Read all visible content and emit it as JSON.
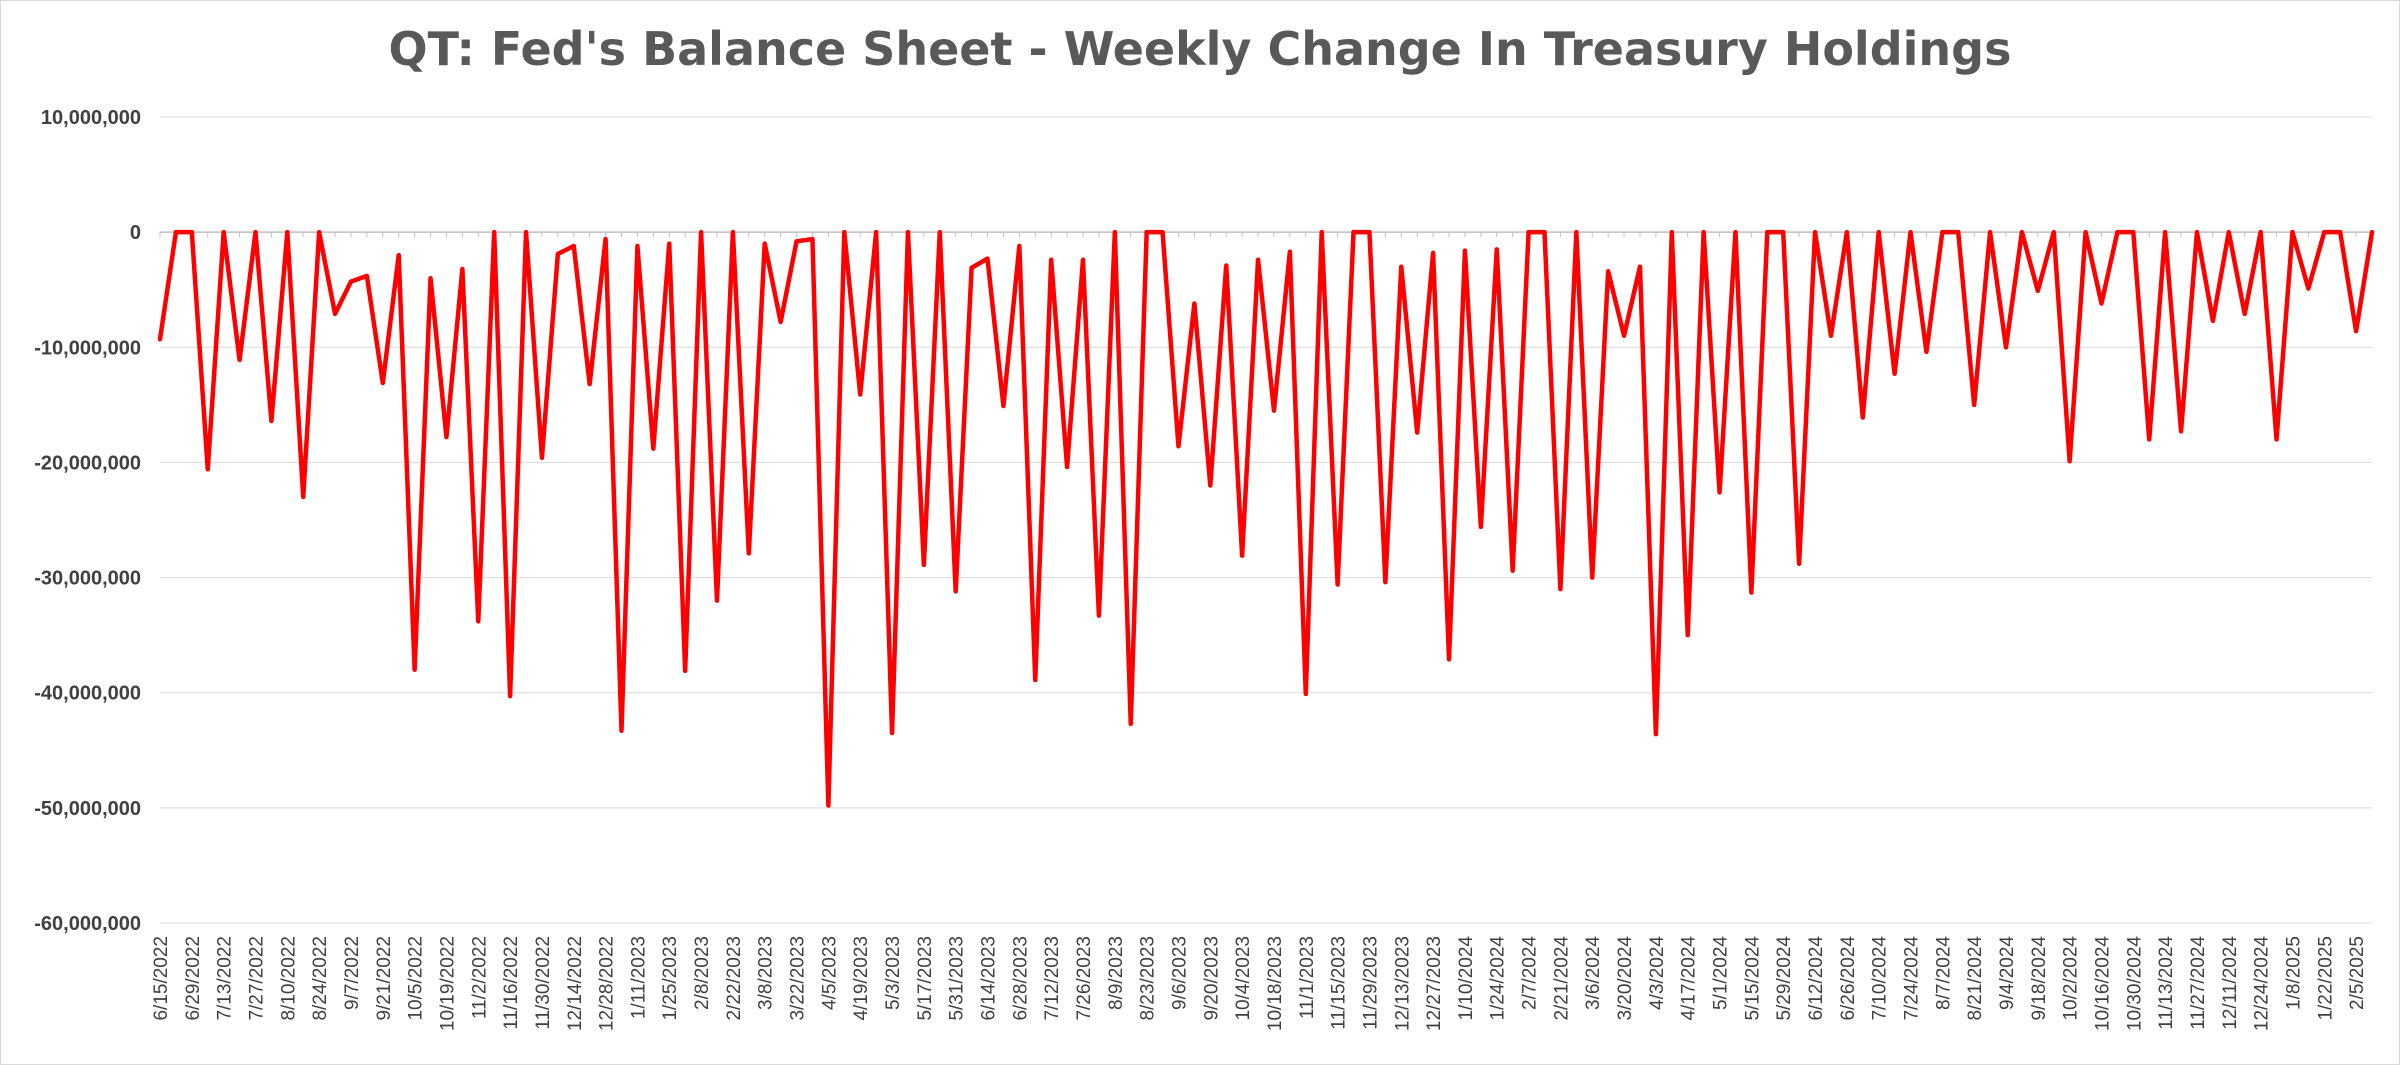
{
  "chart_data": {
    "type": "line",
    "title": "QT: Fed's Balance Sheet - Weekly Change In Treasury Holdings",
    "xlabel": "",
    "ylabel": "",
    "ylim": [
      -60000000,
      10000000
    ],
    "y_ticks": [
      10000000,
      0,
      -10000000,
      -20000000,
      -30000000,
      -40000000,
      -50000000,
      -60000000
    ],
    "y_tick_labels": [
      "10,000,000",
      "0",
      "-10,000,000",
      "-20,000,000",
      "-30,000,000",
      "-40,000,000",
      "-50,000,000",
      "-60,000,000"
    ],
    "x_tick_labels": [
      "6/15/2022",
      "6/29/2022",
      "7/13/2022",
      "7/27/2022",
      "8/10/2022",
      "8/24/2022",
      "9/7/2022",
      "9/21/2022",
      "10/5/2022",
      "10/19/2022",
      "11/2/2022",
      "11/16/2022",
      "11/30/2022",
      "12/14/2022",
      "12/28/2022",
      "1/11/2023",
      "1/25/2023",
      "2/8/2023",
      "2/22/2023",
      "3/8/2023",
      "3/22/2023",
      "4/5/2023",
      "4/19/2023",
      "5/3/2023",
      "5/17/2023",
      "5/31/2023",
      "6/14/2023",
      "6/28/2023",
      "7/12/2023",
      "7/26/2023",
      "8/9/2023",
      "8/23/2023",
      "9/6/2023",
      "9/20/2023",
      "10/4/2023",
      "10/18/2023",
      "11/1/2023",
      "11/15/2023",
      "11/29/2023",
      "12/13/2023",
      "12/27/2023",
      "1/10/2024",
      "1/24/2024",
      "2/7/2024",
      "2/21/2024",
      "3/6/2024",
      "3/20/2024",
      "4/3/2024",
      "4/17/2024",
      "5/1/2024",
      "5/15/2024",
      "5/29/2024",
      "6/12/2024",
      "6/26/2024",
      "7/10/2024",
      "7/24/2024",
      "8/7/2024",
      "8/21/2024",
      "9/4/2024",
      "9/18/2024",
      "10/2/2024",
      "10/16/2024",
      "10/30/2024",
      "11/13/2024",
      "11/27/2024",
      "12/11/2024",
      "12/24/2024",
      "1/8/2025",
      "1/22/2025",
      "2/5/2025"
    ],
    "grid": true,
    "legend": "none",
    "series": [
      {
        "color": "#ff0000",
        "x": [
          "6/15/2022",
          "6/22/2022",
          "6/29/2022",
          "7/6/2022",
          "7/13/2022",
          "7/20/2022",
          "7/27/2022",
          "8/3/2022",
          "8/10/2022",
          "8/17/2022",
          "8/24/2022",
          "8/31/2022",
          "9/7/2022",
          "9/14/2022",
          "9/21/2022",
          "9/28/2022",
          "10/5/2022",
          "10/12/2022",
          "10/19/2022",
          "10/26/2022",
          "11/2/2022",
          "11/9/2022",
          "11/16/2022",
          "11/23/2022",
          "11/30/2022",
          "12/7/2022",
          "12/14/2022",
          "12/21/2022",
          "12/28/2022",
          "1/4/2023",
          "1/11/2023",
          "1/18/2023",
          "1/25/2023",
          "2/1/2023",
          "2/8/2023",
          "2/15/2023",
          "2/22/2023",
          "3/1/2023",
          "3/8/2023",
          "3/15/2023",
          "3/22/2023",
          "3/29/2023",
          "4/5/2023",
          "4/12/2023",
          "4/19/2023",
          "4/26/2023",
          "5/3/2023",
          "5/10/2023",
          "5/17/2023",
          "5/24/2023",
          "5/31/2023",
          "6/7/2023",
          "6/14/2023",
          "6/21/2023",
          "6/28/2023",
          "7/5/2023",
          "7/12/2023",
          "7/19/2023",
          "7/26/2023",
          "8/2/2023",
          "8/9/2023",
          "8/16/2023",
          "8/23/2023",
          "8/30/2023",
          "9/6/2023",
          "9/13/2023",
          "9/20/2023",
          "9/27/2023",
          "10/4/2023",
          "10/11/2023",
          "10/18/2023",
          "10/25/2023",
          "11/1/2023",
          "11/8/2023",
          "11/15/2023",
          "11/22/2023",
          "11/29/2023",
          "12/6/2023",
          "12/13/2023",
          "12/20/2023",
          "12/27/2023",
          "1/3/2024",
          "1/10/2024",
          "1/17/2024",
          "1/24/2024",
          "1/31/2024",
          "2/7/2024",
          "2/14/2024",
          "2/21/2024",
          "2/28/2024",
          "3/6/2024",
          "3/13/2024",
          "3/20/2024",
          "3/27/2024",
          "4/3/2024",
          "4/10/2024",
          "4/17/2024",
          "4/24/2024",
          "5/1/2024",
          "5/8/2024",
          "5/15/2024",
          "5/22/2024",
          "5/29/2024",
          "6/5/2024",
          "6/12/2024",
          "6/19/2024",
          "6/26/2024",
          "7/3/2024",
          "7/10/2024",
          "7/17/2024",
          "7/24/2024",
          "7/31/2024",
          "8/7/2024",
          "8/14/2024",
          "8/21/2024",
          "8/28/2024",
          "9/4/2024",
          "9/11/2024",
          "9/18/2024",
          "9/25/2024",
          "10/2/2024",
          "10/9/2024",
          "10/16/2024",
          "10/23/2024",
          "10/30/2024",
          "11/6/2024",
          "11/13/2024",
          "11/20/2024",
          "11/27/2024",
          "12/4/2024",
          "12/11/2024",
          "12/18/2024",
          "12/24/2024",
          "1/1/2025",
          "1/8/2025",
          "1/15/2025",
          "1/22/2025",
          "1/29/2025",
          "2/5/2025",
          "2/12/2025"
        ],
        "values": [
          -9300000,
          0,
          0,
          -20600000,
          0,
          -11100000,
          0,
          -16400000,
          0,
          -23000000,
          0,
          -7100000,
          -4300000,
          -3800000,
          -13100000,
          -2000000,
          -38000000,
          -4000000,
          -17800000,
          -3200000,
          -33800000,
          0,
          -40300000,
          0,
          -19600000,
          -1900000,
          -1200000,
          -13200000,
          -600000,
          -43300000,
          -1200000,
          -18800000,
          -1000000,
          -38100000,
          0,
          -32000000,
          0,
          -27900000,
          -1000000,
          -7800000,
          -800000,
          -600000,
          -49800000,
          0,
          -14100000,
          0,
          -43500000,
          0,
          -28900000,
          0,
          -31200000,
          -3100000,
          -2300000,
          -15100000,
          -1200000,
          -38900000,
          -2400000,
          -20400000,
          -2400000,
          -33300000,
          0,
          -42700000,
          0,
          0,
          -18600000,
          -6200000,
          -22000000,
          -2900000,
          -28100000,
          -2400000,
          -15500000,
          -1700000,
          -40100000,
          0,
          -30600000,
          0,
          0,
          -30400000,
          -3000000,
          -17400000,
          -1800000,
          -37100000,
          -1600000,
          -25600000,
          -1500000,
          -29400000,
          0,
          0,
          -31000000,
          0,
          -30000000,
          -3400000,
          -9000000,
          -3000000,
          -43600000,
          0,
          -35000000,
          0,
          -22600000,
          0,
          -31300000,
          0,
          0,
          -28800000,
          0,
          -9000000,
          0,
          -16100000,
          0,
          -12300000,
          0,
          -10400000,
          0,
          0,
          -15000000,
          0,
          -10000000,
          0,
          -5100000,
          0,
          -19900000,
          0,
          -6200000,
          0,
          0,
          -18000000,
          0,
          -17300000,
          0,
          -7700000,
          0,
          -7100000,
          0,
          -18000000,
          0,
          -4900000,
          0,
          0,
          -8600000,
          0
        ]
      }
    ]
  }
}
